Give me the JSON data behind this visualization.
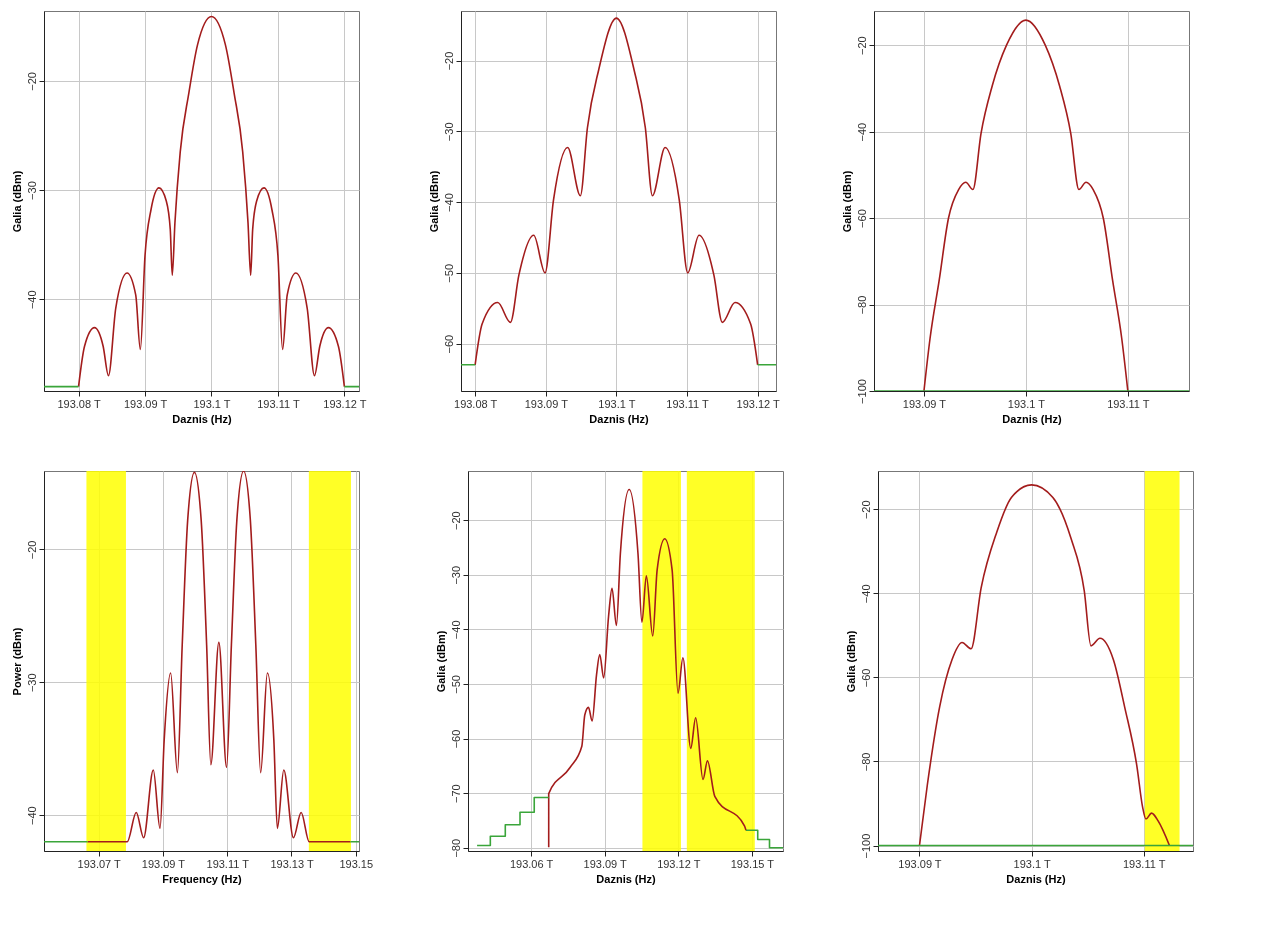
{
  "chart_data": [
    {
      "type": "line",
      "xlabel": "Daznis (Hz)",
      "ylabel": "Galia (dBm)",
      "xlim": [
        193.0748,
        193.1222
      ],
      "ylim": [
        -48.4,
        -13.6
      ],
      "xticks": [
        {
          "value": 193.08,
          "label": "193.08 T"
        },
        {
          "value": 193.09,
          "label": "193.09 T"
        },
        {
          "value": 193.1,
          "label": "193.1 T"
        },
        {
          "value": 193.11,
          "label": "193.11 T"
        },
        {
          "value": 193.12,
          "label": "193.12 T"
        }
      ],
      "yticks": [
        -20,
        -30,
        -40
      ],
      "grid": true,
      "legend": false,
      "series": [
        {
          "color": "#a31c1c",
          "x": [
            193.08,
            193.0809,
            193.0824,
            193.0837,
            193.0845,
            193.0856,
            193.0873,
            193.0886,
            193.0893,
            193.09,
            193.0909,
            193.0921,
            193.0932,
            193.0938,
            193.0941,
            193.0945,
            193.0953,
            193.0966,
            193.0979,
            193.1,
            193.1021,
            193.1034,
            193.1047,
            193.1055,
            193.1059,
            193.1062,
            193.1068,
            193.1079,
            193.1091,
            193.11,
            193.1107,
            193.1114,
            193.1127,
            193.1144,
            193.1155,
            193.1163,
            193.1176,
            193.1191,
            193.12
          ],
          "values": [
            -48,
            -44.3,
            -42.6,
            -44.3,
            -47,
            -40.8,
            -37.6,
            -39.6,
            -44.6,
            -36,
            -31.8,
            -29.8,
            -31,
            -33.6,
            -37.8,
            -33,
            -26.5,
            -21.1,
            -16.7,
            -14.1,
            -16.7,
            -21.1,
            -26.5,
            -33,
            -37.8,
            -33.6,
            -31,
            -29.8,
            -31.8,
            -36,
            -44.6,
            -39.6,
            -37.6,
            -40.8,
            -47,
            -44.3,
            -42.6,
            -44.3,
            -48
          ]
        },
        {
          "color": "#3aa53a",
          "x": [
            193.0748,
            193.08,
            193.1,
            193.12,
            193.1222
          ],
          "values": [
            -48,
            -48,
            null,
            -48,
            -48
          ]
        }
      ]
    },
    {
      "type": "line",
      "xlabel": "Daznis (Hz)",
      "ylabel": "Galia (dBm)",
      "xlim": [
        193.078,
        193.1226
      ],
      "ylim": [
        -66.7,
        -13
      ],
      "xticks": [
        {
          "value": 193.08,
          "label": "193.08 T"
        },
        {
          "value": 193.09,
          "label": "193.09 T"
        },
        {
          "value": 193.1,
          "label": "193.1 T"
        },
        {
          "value": 193.11,
          "label": "193.11 T"
        },
        {
          "value": 193.12,
          "label": "193.12 T"
        }
      ],
      "yticks": [
        -20,
        -30,
        -40,
        -50,
        -60
      ],
      "grid": true,
      "legend": false,
      "series": [
        {
          "color": "#a31c1c",
          "x": [
            193.08,
            193.081,
            193.0832,
            193.085,
            193.0862,
            193.0883,
            193.0899,
            193.0911,
            193.0931,
            193.0949,
            193.0959,
            193.0975,
            193.1,
            193.1025,
            193.1041,
            193.1051,
            193.1069,
            193.1089,
            193.1101,
            193.1117,
            193.1138,
            193.115,
            193.1168,
            193.119,
            193.12
          ],
          "values": [
            -63,
            -57.2,
            -54.2,
            -57,
            -50.3,
            -44.7,
            -50,
            -39.7,
            -32.3,
            -39.1,
            -29.5,
            -21.3,
            -14,
            -21.3,
            -29.5,
            -39.1,
            -32.3,
            -39.7,
            -50,
            -44.7,
            -50.3,
            -57,
            -54.2,
            -57.2,
            -63
          ]
        },
        {
          "color": "#3aa53a",
          "x": [
            193.078,
            193.08,
            193.1,
            193.12,
            193.1226
          ],
          "values": [
            -63,
            -63,
            null,
            -63,
            -63
          ]
        }
      ]
    },
    {
      "type": "line",
      "xlabel": "Daznis (Hz)",
      "ylabel": "Galia (dBm)",
      "xlim": [
        193.0851,
        193.116
      ],
      "ylim": [
        -100,
        -12.1
      ],
      "xticks": [
        {
          "value": 193.09,
          "label": "193.09 T"
        },
        {
          "value": 193.1,
          "label": "193.1 T"
        },
        {
          "value": 193.11,
          "label": "193.11 T"
        }
      ],
      "yticks": [
        -20,
        -40,
        -60,
        -80,
        -100
      ],
      "grid": true,
      "legend": false,
      "series": [
        {
          "color": "#a31c1c",
          "x": [
            193.09,
            193.0906,
            193.0915,
            193.0924,
            193.0934,
            193.0941,
            193.0948,
            193.0956,
            193.0967,
            193.0981,
            193.1,
            193.1019,
            193.1033,
            193.1044,
            193.1052,
            193.1059,
            193.1066,
            193.1076,
            193.1085,
            193.1094,
            193.11
          ],
          "values": [
            -100,
            -87.8,
            -74.3,
            -60.1,
            -53.4,
            -51.7,
            -53.4,
            -40.4,
            -29.4,
            -20,
            -14.2,
            -20,
            -29.4,
            -40.4,
            -53.4,
            -51.7,
            -53.4,
            -60.1,
            -74.3,
            -87.8,
            -100
          ]
        },
        {
          "color": "#3aa53a",
          "x": [
            193.0851,
            193.116
          ],
          "values": [
            -100,
            -100
          ]
        }
      ]
    },
    {
      "type": "line",
      "xlabel": "Frequency (Hz)",
      "ylabel": "Power (dBm)",
      "xlim": [
        193.053,
        193.151
      ],
      "ylim": [
        -42.7,
        -14.1
      ],
      "xticks": [
        {
          "value": 193.07,
          "label": "193.07 T"
        },
        {
          "value": 193.09,
          "label": "193.09 T"
        },
        {
          "value": 193.11,
          "label": "193.11 T"
        },
        {
          "value": 193.13,
          "label": "193.13 T"
        },
        {
          "value": 193.15,
          "label": "193.15"
        }
      ],
      "yticks": [
        -20,
        -30,
        -40
      ],
      "grid": true,
      "legend": false,
      "bands": [
        {
          "axis": "x",
          "from": 193.0662,
          "to": 193.0785,
          "color": "#ffff00"
        },
        {
          "axis": "x",
          "from": 193.1354,
          "to": 193.1485,
          "color": "#ffff00"
        }
      ],
      "series": [
        {
          "color": "#a31c1c",
          "x": [
            193.0666,
            193.0789,
            193.0817,
            193.084,
            193.087,
            193.0891,
            193.0904,
            193.0924,
            193.0945,
            193.096,
            193.0977,
            193.0998,
            193.1019,
            193.1036,
            193.1049,
            193.1074,
            193.1098,
            193.1113,
            193.113,
            193.1151,
            193.1172,
            193.1189,
            193.1204,
            193.1225,
            193.1245,
            193.1256,
            193.1276,
            193.1306,
            193.133,
            193.1355,
            193.1483
          ],
          "values": [
            -42,
            -42,
            -39.8,
            -41.7,
            -36.6,
            -41,
            -34.3,
            -29.3,
            -36.8,
            -27.2,
            -17.8,
            -14.2,
            -17.8,
            -27.2,
            -36.2,
            -27,
            -36.4,
            -27.2,
            -17.8,
            -14.1,
            -17.8,
            -27.2,
            -36.8,
            -29.3,
            -34.3,
            -41,
            -36.6,
            -41.7,
            -39.8,
            -42,
            -42
          ]
        },
        {
          "color": "#3aa53a",
          "x": [
            193.053,
            193.0666,
            193.1,
            193.1483,
            193.151
          ],
          "values": [
            -42,
            -42,
            null,
            -42,
            -42
          ]
        }
      ]
    },
    {
      "type": "line",
      "xlabel": "Daznis (Hz)",
      "ylabel": "Galia (dBm)",
      "xlim": [
        193.0343,
        193.1627
      ],
      "ylim": [
        -80.6,
        -11
      ],
      "xticks": [
        {
          "value": 193.06,
          "label": "193.06 T"
        },
        {
          "value": 193.09,
          "label": "193.09 T"
        },
        {
          "value": 193.12,
          "label": "193.12 T"
        },
        {
          "value": 193.15,
          "label": "193.15 T"
        }
      ],
      "yticks": [
        -20,
        -30,
        -40,
        -50,
        -60,
        -70,
        -80
      ],
      "grid": true,
      "legend": false,
      "bands": [
        {
          "axis": "x",
          "from": 193.1054,
          "to": 193.1211,
          "color": "#ffff00"
        },
        {
          "axis": "x",
          "from": 193.1235,
          "to": 193.1512,
          "color": "#ffff00"
        }
      ],
      "series": [
        {
          "color": "#a31c1c",
          "x": [
            193.0672,
            193.0672,
            193.0759,
            193.0807,
            193.0819,
            193.0834,
            193.0849,
            193.0867,
            193.088,
            193.0896,
            193.0916,
            193.093,
            193.0948,
            193.0964,
            193.1,
            193.1036,
            193.1052,
            193.107,
            193.1096,
            193.1114,
            193.1145,
            193.1175,
            193.1199,
            193.1219,
            193.1251,
            193.1271,
            193.1301,
            193.1319,
            193.1349,
            193.147,
            193.1476
          ],
          "values": [
            -79.9,
            -70.1,
            -65.3,
            -61.4,
            -55.7,
            -54.3,
            -56.8,
            -48.3,
            -44.6,
            -48.9,
            -37.6,
            -32.5,
            -39.3,
            -26.2,
            -14.4,
            -26.2,
            -38.7,
            -30.2,
            -41.2,
            -29.1,
            -23.4,
            -29.1,
            -51.7,
            -45.2,
            -61.8,
            -56.2,
            -67.5,
            -64.1,
            -70.6,
            -76,
            -76.8
          ]
        },
        {
          "type": "step",
          "color": "#3aa53a",
          "x": [
            193.038,
            193.0434,
            193.0495,
            193.0555,
            193.0613,
            193.0672,
            193.1,
            193.1476,
            193.1524,
            193.1572,
            193.1627
          ],
          "values": [
            -79.6,
            -77.9,
            -75.8,
            -73.5,
            -70.8,
            -70.8,
            null,
            -76.8,
            -78.5,
            -80,
            -80
          ]
        }
      ]
    },
    {
      "type": "line",
      "xlabel": "Daznis (Hz)",
      "ylabel": "Galia (dBm)",
      "xlim": [
        193.0863,
        193.1144
      ],
      "ylim": [
        -101.3,
        -10.9
      ],
      "xticks": [
        {
          "value": 193.09,
          "label": "193.09 T"
        },
        {
          "value": 193.1,
          "label": "193.1 T"
        },
        {
          "value": 193.11,
          "label": "193.11 T"
        }
      ],
      "yticks": [
        -20,
        -40,
        -60,
        -80,
        -100
      ],
      "grid": true,
      "legend": false,
      "bands": [
        {
          "axis": "x",
          "from": 193.1101,
          "to": 193.1132,
          "color": "#ffff00"
        }
      ],
      "series": [
        {
          "color": "#a31c1c",
          "x": [
            193.09,
            193.0907,
            193.0918,
            193.0929,
            193.0938,
            193.0946,
            193.0955,
            193.0969,
            193.0982,
            193.1,
            193.1019,
            193.1035,
            193.1047,
            193.1053,
            193.1061,
            193.1073,
            193.1083,
            193.1094,
            193.1099,
            193.1102,
            193.1107,
            193.1113,
            193.1123
          ],
          "values": [
            -100,
            -85.6,
            -67,
            -55.8,
            -51.7,
            -53.2,
            -38.7,
            -25.4,
            -17.2,
            -14.2,
            -17.2,
            -26.8,
            -39.4,
            -52.5,
            -50.7,
            -55.8,
            -67,
            -81.2,
            -90.8,
            -93.7,
            -92.3,
            -94.2,
            -100
          ]
        },
        {
          "color": "#3aa53a",
          "x": [
            193.0863,
            193.1144
          ],
          "values": [
            -100,
            -100
          ]
        }
      ]
    }
  ]
}
